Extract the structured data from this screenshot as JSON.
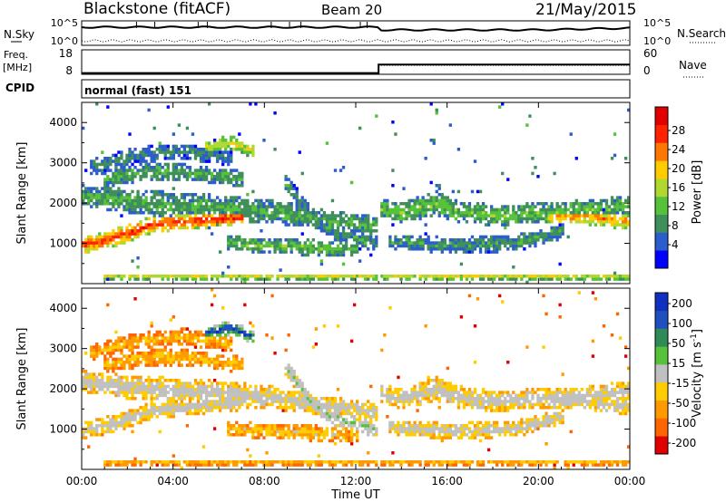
{
  "header": {
    "station": "Blackstone (fitACF)",
    "beam": "Beam 20",
    "date": "21/May/2015"
  },
  "noise_panel": {
    "left_label": "N.Sky",
    "right_label": "N.Search",
    "left_ticks": [
      "10^5",
      "10^0"
    ],
    "right_ticks": [
      "10^5",
      "10^0"
    ]
  },
  "freq_panel": {
    "left_label_1": "Freq.",
    "left_label_2": "[MHz]",
    "right_label": "Nave",
    "left_ticks": [
      "18",
      "8"
    ],
    "right_ticks": [
      "60",
      "0"
    ],
    "freq_before_mhz": 8.5,
    "freq_after_mhz": 12.0,
    "switch_hour": 13.0,
    "nave_after": 22
  },
  "cpid_panel": {
    "label": "CPID",
    "text": "normal (fast) 151"
  },
  "time_ticks": [
    "00:00",
    "04:00",
    "08:00",
    "12:00",
    "16:00",
    "20:00",
    "00:00"
  ],
  "x_label": "Time UT",
  "chart_data": [
    {
      "type": "heatmap",
      "name": "power",
      "ylabel": "Slant Range [km]",
      "xlim_hours": [
        0,
        24
      ],
      "ylim_km": [
        0,
        4500
      ],
      "yticks": [
        "1000",
        "2000",
        "3000",
        "4000"
      ],
      "colorbar_label": "Power [dB]",
      "colorbar_ticks": [
        "28",
        "24",
        "20",
        "16",
        "12",
        "8",
        "4"
      ],
      "colors": [
        "#0000ff",
        "#2b5dcc",
        "#3f8f5a",
        "#55c239",
        "#b0d830",
        "#ffcc00",
        "#ff7700",
        "#ff2200",
        "#e00000"
      ],
      "bands": [
        {
          "t": [
            0.0,
            1.5,
            3.0,
            4.5,
            6.0,
            7.0
          ],
          "r": [
            950,
            1150,
            1450,
            1550,
            1600,
            1650
          ],
          "w": [
            200,
            220,
            200,
            200,
            200,
            180
          ],
          "level": 0.85
        },
        {
          "t": [
            0.0,
            2.0,
            4.0,
            6.0,
            8.0,
            9.5,
            11.0,
            12.9
          ],
          "r": [
            2200,
            2050,
            1950,
            1900,
            1800,
            1700,
            1550,
            1450
          ],
          "w": [
            260,
            300,
            320,
            300,
            300,
            260,
            240,
            220
          ],
          "level": 0.35
        },
        {
          "t": [
            13.0,
            14.0,
            15.5,
            16.5,
            18.0,
            20.0,
            22.0,
            24.0
          ],
          "r": [
            1900,
            1750,
            2000,
            1800,
            1700,
            1750,
            1800,
            1950
          ],
          "w": [
            250,
            250,
            300,
            280,
            260,
            250,
            260,
            250
          ],
          "level": 0.4
        },
        {
          "t": [
            20.5,
            22.0,
            23.0,
            24.0
          ],
          "r": [
            1650,
            1700,
            1600,
            1550
          ],
          "w": [
            180,
            220,
            200,
            200
          ],
          "level": 0.7
        },
        {
          "t": [
            1.0,
            3.0,
            5.0,
            7.0
          ],
          "r": [
            2600,
            2800,
            2750,
            2600
          ],
          "w": [
            200,
            220,
            200,
            200
          ],
          "level": 0.35
        },
        {
          "t": [
            5.5,
            6.5,
            7.5
          ],
          "r": [
            3400,
            3500,
            3300
          ],
          "w": [
            150,
            200,
            150
          ],
          "level": 0.55
        },
        {
          "t": [
            9.0,
            10.0,
            11.0,
            12.9
          ],
          "r": [
            2500,
            1700,
            1300,
            1000
          ],
          "w": [
            200,
            220,
            200,
            200
          ],
          "level": 0.3
        },
        {
          "t": [
            13.5,
            16.0,
            19.0,
            21.0
          ],
          "r": [
            1050,
            950,
            1000,
            1300
          ],
          "w": [
            180,
            200,
            200,
            200
          ],
          "level": 0.3
        },
        {
          "t": [
            0.5,
            2.5,
            4.5,
            6.5
          ],
          "r": [
            2900,
            3200,
            3300,
            3100
          ],
          "w": [
            200,
            200,
            200,
            200
          ],
          "level": 0.25
        },
        {
          "t": [
            6.5,
            8.0,
            10.0,
            12.0
          ],
          "r": [
            1000,
            950,
            900,
            850
          ],
          "w": [
            180,
            180,
            200,
            160
          ],
          "level": 0.4
        },
        {
          "t": [
            1.0,
            24.0
          ],
          "r": [
            180,
            180
          ],
          "w": [
            80,
            80
          ],
          "level": 0.55
        }
      ]
    },
    {
      "type": "heatmap",
      "name": "velocity",
      "ylabel": "Slant Range [km]",
      "xlim_hours": [
        0,
        24
      ],
      "ylim_km": [
        0,
        4500
      ],
      "yticks": [
        "1000",
        "2000",
        "3000",
        "4000"
      ],
      "colorbar_label": "Velocity [m s",
      "colorbar_label_sup": "-1",
      "colorbar_label_end": "]",
      "colorbar_ticks": [
        "200",
        "100",
        "50",
        "15",
        "-15",
        "-50",
        "-100",
        "-200"
      ],
      "colors": [
        "#e00000",
        "#ff6600",
        "#ff9900",
        "#ffcc00",
        "#c0c0c0",
        "#c0c0c0",
        "#55c239",
        "#2e8b57",
        "#2050c0",
        "#1030c0"
      ],
      "bands": [
        {
          "t": [
            0.0,
            1.5,
            3.0,
            4.5,
            6.0,
            7.0
          ],
          "r": [
            950,
            1150,
            1450,
            1550,
            1600,
            1650
          ],
          "w": [
            200,
            220,
            200,
            200,
            200,
            180
          ],
          "level": 0.5
        },
        {
          "t": [
            0.0,
            2.0,
            4.0,
            6.0,
            8.0,
            9.5,
            11.0,
            12.9
          ],
          "r": [
            2200,
            2050,
            1950,
            1900,
            1800,
            1700,
            1550,
            1450
          ],
          "w": [
            260,
            300,
            320,
            300,
            300,
            260,
            240,
            220
          ],
          "level": 0.5
        },
        {
          "t": [
            13.0,
            14.0,
            15.5,
            16.5,
            18.0,
            20.0,
            22.0,
            24.0
          ],
          "r": [
            1900,
            1750,
            2000,
            1800,
            1700,
            1750,
            1800,
            1950
          ],
          "w": [
            250,
            250,
            300,
            280,
            260,
            250,
            260,
            250
          ],
          "level": 0.5
        },
        {
          "t": [
            20.5,
            22.0,
            23.0,
            24.0
          ],
          "r": [
            1650,
            1700,
            1600,
            1550
          ],
          "w": [
            180,
            220,
            200,
            200
          ],
          "level": 0.5
        },
        {
          "t": [
            1.0,
            3.0,
            5.0,
            7.0
          ],
          "r": [
            2600,
            2800,
            2750,
            2600
          ],
          "w": [
            200,
            220,
            200,
            200
          ],
          "level": 0.32
        },
        {
          "t": [
            5.5,
            6.5,
            7.5
          ],
          "r": [
            3400,
            3500,
            3300
          ],
          "w": [
            150,
            200,
            150
          ],
          "level": 0.92
        },
        {
          "t": [
            9.0,
            10.0,
            11.0,
            12.9
          ],
          "r": [
            2500,
            1700,
            1300,
            1000
          ],
          "w": [
            200,
            220,
            200,
            200
          ],
          "level": 0.62
        },
        {
          "t": [
            13.5,
            16.0,
            19.0,
            21.0
          ],
          "r": [
            1050,
            950,
            1000,
            1300
          ],
          "w": [
            180,
            200,
            200,
            200
          ],
          "level": 0.5
        },
        {
          "t": [
            0.5,
            2.5,
            4.5,
            6.5
          ],
          "r": [
            2900,
            3200,
            3300,
            3100
          ],
          "w": [
            200,
            200,
            200,
            200
          ],
          "level": 0.3
        },
        {
          "t": [
            6.5,
            8.0,
            10.0,
            12.0
          ],
          "r": [
            1000,
            950,
            900,
            850
          ],
          "w": [
            180,
            180,
            200,
            160
          ],
          "level": 0.35
        },
        {
          "t": [
            1.0,
            24.0
          ],
          "r": [
            180,
            180
          ],
          "w": [
            80,
            80
          ],
          "level": 0.3
        }
      ]
    }
  ]
}
